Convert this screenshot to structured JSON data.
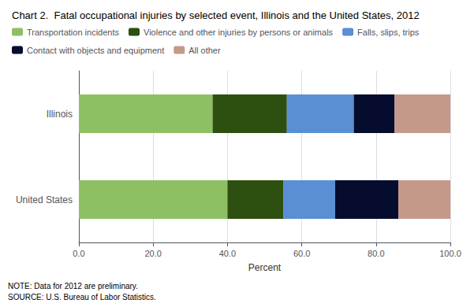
{
  "chart_data": {
    "type": "bar",
    "orientation": "horizontal",
    "stacked": true,
    "title": "Chart 2.  Fatal occupational injuries by selected event, Illinois and the United States, 2012",
    "annotations": [
      "NOTE: Data for 2012 are preliminary.\nSOURCE: U.S. Bureau of Labor Statistics."
    ],
    "categories": [
      "United States",
      "Illinois"
    ],
    "series": [
      {
        "name": "Transportation incidents",
        "color": "#8DC063",
        "values": [
          40.0,
          36.0
        ]
      },
      {
        "name": "Violence and other injuries by persons or animals",
        "color": "#2D4F10",
        "values": [
          15.0,
          20.0
        ]
      },
      {
        "name": "Falls, slips, trips",
        "color": "#5B8FD4",
        "values": [
          14.0,
          18.0
        ]
      },
      {
        "name": "Contact with objects and equipment",
        "color": "#050C2E",
        "values": [
          17.0,
          11.0
        ]
      },
      {
        "name": "All other",
        "color": "#C4998A",
        "values": [
          14.0,
          15.0
        ]
      }
    ],
    "xlabel": "Percent",
    "xlim": [
      0,
      100
    ],
    "xticks": [
      {
        "value": 0,
        "label": "0.0"
      },
      {
        "value": 20,
        "label": "20.0"
      },
      {
        "value": 40,
        "label": "40.0"
      },
      {
        "value": 60,
        "label": "60.0"
      },
      {
        "value": 80,
        "label": "80.0"
      },
      {
        "value": 100,
        "label": "100.0"
      }
    ],
    "grid": true,
    "legend": "top"
  }
}
